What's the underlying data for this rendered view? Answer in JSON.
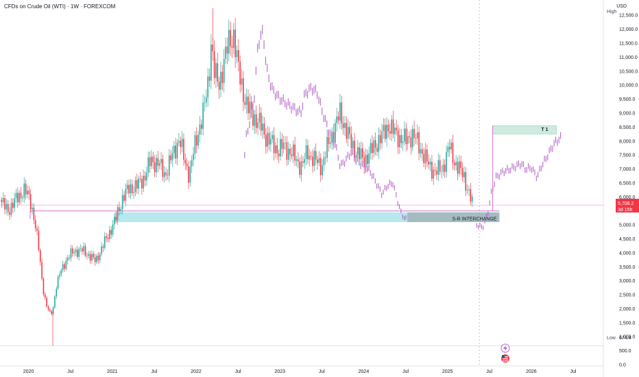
{
  "header": {
    "title": "CFDs on Crude Oil (WTI) · 1W · FOREXCOM",
    "currency": "USD"
  },
  "price_axis": {
    "high_label": "High",
    "low_label": "Low",
    "low_value": "674.4",
    "current_price": "5,708.2",
    "countdown": "3d 15h"
  },
  "markers": {
    "flash_icon": "lightning-icon",
    "flag_icon": "us-flag-icon"
  },
  "colors": {
    "up": "#26a69a",
    "down": "#f23645",
    "projection": "#b466c8",
    "support_line": "#d66fd6",
    "zone_fill": "#b7e8ef",
    "zone_dark": "#a3bcbf",
    "target_fill": "#cfeadf",
    "target_border": "#8fd6b4",
    "price_tag": "#f23645"
  },
  "chart_data": {
    "type": "candlestick",
    "title": "CFDs on Crude Oil (WTI) · 1W · FOREXCOM",
    "ylim": [
      0,
      12800
    ],
    "y_ticks": [
      "0.0",
      "500.0",
      "1,000.0",
      "1,500.0",
      "2,000.0",
      "2,500.0",
      "3,000.0",
      "3,500.0",
      "4,000.0",
      "4,500.0",
      "5,000.0",
      "5,500.0",
      "6,000.0",
      "6,500.0",
      "7,000.0",
      "7,500.0",
      "8,000.0",
      "8,500.0",
      "9,000.0",
      "9,500.0",
      "10,000.0",
      "10,500.0",
      "11,000.0",
      "11,500.0",
      "12,000.0",
      "12,500.0"
    ],
    "x_ticks": [
      {
        "label": "2020",
        "t": 2020.0
      },
      {
        "label": "Jul",
        "t": 2020.5
      },
      {
        "label": "2021",
        "t": 2021.0
      },
      {
        "label": "Jul",
        "t": 2021.5
      },
      {
        "label": "2022",
        "t": 2022.0
      },
      {
        "label": "Jul",
        "t": 2022.5
      },
      {
        "label": "2023",
        "t": 2023.0
      },
      {
        "label": "Jul",
        "t": 2023.5
      },
      {
        "label": "2024",
        "t": 2024.0
      },
      {
        "label": "Jul",
        "t": 2024.5
      },
      {
        "label": "2025",
        "t": 2025.0
      },
      {
        "label": "Jul",
        "t": 2025.5
      },
      {
        "label": "2026",
        "t": 2026.0
      },
      {
        "label": "Jul",
        "t": 2026.5
      }
    ],
    "xlim": [
      2019.66,
      2026.86
    ],
    "price_path": [
      [
        2019.66,
        5900
      ],
      [
        2019.75,
        5500
      ],
      [
        2019.85,
        5900
      ],
      [
        2019.95,
        6250
      ],
      [
        2020.02,
        5900
      ],
      [
        2020.07,
        5200
      ],
      [
        2020.12,
        4200
      ],
      [
        2020.17,
        2800
      ],
      [
        2020.21,
        2150
      ],
      [
        2020.26,
        1800
      ],
      [
        2020.29,
        1950
      ],
      [
        2020.33,
        2800
      ],
      [
        2020.38,
        3300
      ],
      [
        2020.46,
        3800
      ],
      [
        2020.54,
        4050
      ],
      [
        2020.63,
        4100
      ],
      [
        2020.71,
        3950
      ],
      [
        2020.8,
        3700
      ],
      [
        2020.88,
        4200
      ],
      [
        2020.96,
        4700
      ],
      [
        2021.04,
        5200
      ],
      [
        2021.12,
        5950
      ],
      [
        2021.2,
        6300
      ],
      [
        2021.3,
        6400
      ],
      [
        2021.38,
        6700
      ],
      [
        2021.46,
        7300
      ],
      [
        2021.55,
        7200
      ],
      [
        2021.63,
        6800
      ],
      [
        2021.72,
        7500
      ],
      [
        2021.8,
        8100
      ],
      [
        2021.86,
        7300
      ],
      [
        2021.92,
        6800
      ],
      [
        2021.97,
        7600
      ],
      [
        2022.03,
        8400
      ],
      [
        2022.1,
        9200
      ],
      [
        2022.15,
        10200
      ],
      [
        2022.18,
        11600
      ],
      [
        2022.22,
        10400
      ],
      [
        2022.27,
        10000
      ],
      [
        2022.33,
        10800
      ],
      [
        2022.4,
        11600
      ],
      [
        2022.45,
        11800
      ],
      [
        2022.5,
        10600
      ],
      [
        2022.56,
        9800
      ],
      [
        2022.61,
        9200
      ],
      [
        2022.68,
        8900
      ],
      [
        2022.76,
        8600
      ],
      [
        2022.83,
        8200
      ],
      [
        2022.9,
        7900
      ],
      [
        2022.97,
        7700
      ],
      [
        2023.05,
        7800
      ],
      [
        2023.13,
        7600
      ],
      [
        2023.2,
        7300
      ],
      [
        2023.26,
        7100
      ],
      [
        2023.33,
        7600
      ],
      [
        2023.42,
        7300
      ],
      [
        2023.5,
        7100
      ],
      [
        2023.58,
        7900
      ],
      [
        2023.67,
        8600
      ],
      [
        2023.72,
        9000
      ],
      [
        2023.78,
        8500
      ],
      [
        2023.85,
        7900
      ],
      [
        2023.92,
        7600
      ],
      [
        2024.0,
        7300
      ],
      [
        2024.08,
        7600
      ],
      [
        2024.17,
        8000
      ],
      [
        2024.25,
        8300
      ],
      [
        2024.3,
        8600
      ],
      [
        2024.36,
        8300
      ],
      [
        2024.44,
        8100
      ],
      [
        2024.5,
        8000
      ],
      [
        2024.58,
        8250
      ],
      [
        2024.63,
        8000
      ],
      [
        2024.7,
        7600
      ],
      [
        2024.78,
        7100
      ],
      [
        2024.86,
        6900
      ],
      [
        2024.94,
        7000
      ],
      [
        2025.02,
        7800
      ],
      [
        2025.08,
        7300
      ],
      [
        2025.14,
        7000
      ],
      [
        2025.2,
        6700
      ],
      [
        2025.27,
        6000
      ],
      [
        2025.3,
        5700
      ]
    ],
    "projection_path": [
      [
        2022.58,
        7500
      ],
      [
        2022.6,
        8200
      ],
      [
        2022.66,
        8900
      ],
      [
        2022.7,
        9700
      ],
      [
        2022.73,
        11200
      ],
      [
        2022.76,
        11700
      ],
      [
        2022.8,
        11900
      ],
      [
        2022.84,
        10600
      ],
      [
        2022.9,
        9900
      ],
      [
        2022.97,
        9600
      ],
      [
        2023.05,
        9400
      ],
      [
        2023.15,
        9200
      ],
      [
        2023.25,
        9000
      ],
      [
        2023.3,
        9700
      ],
      [
        2023.38,
        9900
      ],
      [
        2023.45,
        9700
      ],
      [
        2023.5,
        9100
      ],
      [
        2023.58,
        8400
      ],
      [
        2023.66,
        7900
      ],
      [
        2023.72,
        7100
      ],
      [
        2023.78,
        7300
      ],
      [
        2023.85,
        7600
      ],
      [
        2023.92,
        7300
      ],
      [
        2024.0,
        7100
      ],
      [
        2024.08,
        6900
      ],
      [
        2024.15,
        6500
      ],
      [
        2024.22,
        6100
      ],
      [
        2024.28,
        6400
      ],
      [
        2024.35,
        6500
      ],
      [
        2024.4,
        5900
      ],
      [
        2024.45,
        5400
      ],
      [
        2024.5,
        5200
      ],
      [
        2025.35,
        5000
      ],
      [
        2025.42,
        4900
      ],
      [
        2025.48,
        5400
      ],
      [
        2025.52,
        6100
      ],
      [
        2025.58,
        6700
      ],
      [
        2025.66,
        6900
      ],
      [
        2025.75,
        7000
      ],
      [
        2025.82,
        7100
      ],
      [
        2025.88,
        7200
      ],
      [
        2025.93,
        7000
      ],
      [
        2026.0,
        7050
      ],
      [
        2026.07,
        6700
      ],
      [
        2026.12,
        7100
      ],
      [
        2026.18,
        7400
      ],
      [
        2026.25,
        7800
      ],
      [
        2026.3,
        8000
      ],
      [
        2026.35,
        8100
      ]
    ],
    "support_level": 5500,
    "support_start": 2020.02,
    "zone": {
      "from": 5100,
      "to": 5450,
      "start": 2021.03,
      "end": 2025.62,
      "label": "S-R INTERCHANGE"
    },
    "target": {
      "from": 8250,
      "to": 8550,
      "start": 2025.54,
      "end": 2026.3,
      "label": "T 1"
    },
    "wick_extremes": {
      "high": 12750,
      "high_at": 2022.2,
      "low": 674.4,
      "low_at": 2020.29
    },
    "current_price": 5708.2,
    "time_marker": 2025.38
  }
}
